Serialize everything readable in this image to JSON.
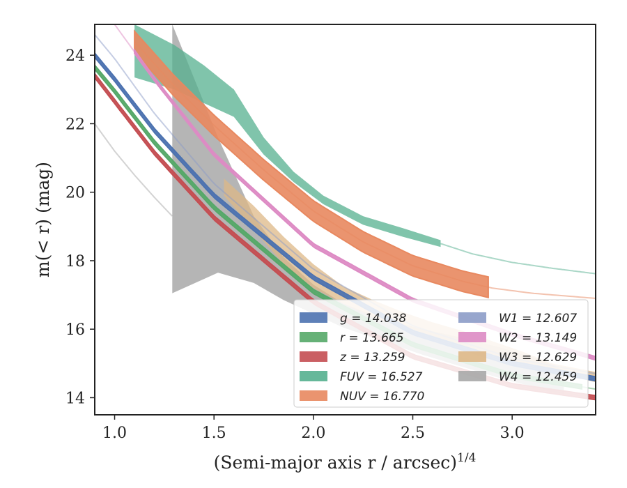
{
  "chart_data": {
    "type": "line",
    "xlabel": "(Semi-major axis r / arcsec)",
    "xlabel_exponent": "1/4",
    "ylabel": "m(< r) (mag)",
    "xlim": [
      0.9,
      3.42
    ],
    "ylim": [
      24.9,
      13.5
    ],
    "y_inverted": true,
    "xticks": [
      1.0,
      1.5,
      2.0,
      2.5,
      3.0
    ],
    "xtick_labels": [
      "1.0",
      "1.5",
      "2.0",
      "2.5",
      "3.0"
    ],
    "yticks": [
      14,
      16,
      18,
      20,
      22,
      24
    ],
    "ytick_labels": [
      "14",
      "16",
      "18",
      "20",
      "22",
      "24"
    ],
    "legend_position": "lower-right",
    "legend_columns": 2,
    "series": [
      {
        "name": "g",
        "legend": "g = 14.038",
        "color": "#4c72b0",
        "band": 0.06,
        "solid_range": [
          0.9,
          3.42
        ],
        "x": [
          0.9,
          1.0,
          1.2,
          1.5,
          2.0,
          2.5,
          3.0,
          3.42
        ],
        "y": [
          24.0,
          23.3,
          21.8,
          19.9,
          17.5,
          15.9,
          15.0,
          14.55
        ]
      },
      {
        "name": "r",
        "legend": "r = 13.665",
        "color": "#55a868",
        "band": 0.06,
        "solid_range": [
          0.9,
          3.35
        ],
        "x": [
          0.9,
          1.0,
          1.2,
          1.5,
          2.0,
          2.5,
          3.0,
          3.42
        ],
        "y": [
          23.65,
          22.95,
          21.45,
          19.55,
          17.1,
          15.55,
          14.65,
          14.25
        ]
      },
      {
        "name": "z",
        "legend": "z = 13.259",
        "color": "#c44e52",
        "band": 0.06,
        "solid_range": [
          0.9,
          3.42
        ],
        "x": [
          0.9,
          1.0,
          1.2,
          1.5,
          2.0,
          2.5,
          3.0,
          3.42
        ],
        "y": [
          23.4,
          22.65,
          21.15,
          19.25,
          16.8,
          15.2,
          14.35,
          14.0
        ]
      },
      {
        "name": "FUV",
        "legend": "FUV = 16.527",
        "color": "#55b08f",
        "band_lo": [
          24.9,
          24.3,
          23.7,
          23.0,
          21.6,
          20.6,
          19.9,
          19.3,
          18.95,
          18.6
        ],
        "band_hi": [
          23.35,
          23.0,
          22.6,
          22.2,
          21.1,
          20.3,
          19.65,
          19.05,
          18.7,
          18.4
        ],
        "band_x": [
          1.1,
          1.3,
          1.45,
          1.6,
          1.75,
          1.9,
          2.05,
          2.25,
          2.45,
          2.64
        ],
        "solid_range": [
          1.1,
          2.64
        ],
        "x": [
          2.64,
          2.8,
          3.0,
          3.2,
          3.42
        ],
        "y": [
          18.5,
          18.2,
          17.95,
          17.78,
          17.62
        ]
      },
      {
        "name": "NUV",
        "legend": "NUV = 16.770",
        "color": "#e8885f",
        "band": 0.3,
        "solid_range": [
          1.1,
          2.88
        ],
        "x": [
          1.1,
          1.3,
          1.5,
          1.75,
          2.0,
          2.25,
          2.5,
          2.75,
          2.9,
          3.1,
          3.42
        ],
        "y": [
          24.4,
          23.1,
          21.95,
          20.65,
          19.45,
          18.55,
          17.85,
          17.4,
          17.2,
          17.05,
          16.9
        ]
      },
      {
        "name": "W1",
        "legend": "W1 = 12.607",
        "color": "#8c9cc8",
        "band": 0.04,
        "solid_range": [
          3.42,
          3.42
        ],
        "x": [
          0.9,
          1.0,
          1.2,
          1.5,
          2.0,
          2.5,
          3.0,
          3.42
        ],
        "y": [
          24.6,
          23.9,
          22.3,
          20.25,
          17.75,
          16.1,
          15.15,
          14.7
        ]
      },
      {
        "name": "W2",
        "legend": "W2 = 13.149",
        "color": "#dd8bc4",
        "band": 0.05,
        "solid_range": [
          1.1,
          3.42
        ],
        "x": [
          0.9,
          1.0,
          1.2,
          1.5,
          2.0,
          2.5,
          3.0,
          3.42
        ],
        "y": [
          25.6,
          24.9,
          23.3,
          21.1,
          18.45,
          16.85,
          15.85,
          15.15
        ]
      },
      {
        "name": "W3",
        "legend": "W3 = 12.629",
        "color": "#deb887",
        "solid_range": [
          1.55,
          3.42
        ],
        "band_x": [
          1.55,
          1.7,
          1.85,
          2.0,
          2.15,
          2.3,
          2.45,
          2.6,
          2.75,
          2.9,
          3.05,
          3.2,
          3.42
        ],
        "band_lo": [
          20.4,
          19.6,
          18.7,
          17.9,
          17.25,
          16.85,
          16.5,
          16.2,
          15.95,
          15.65,
          15.35,
          15.0,
          14.75
        ],
        "band_hi": [
          19.9,
          18.9,
          17.9,
          17.2,
          16.75,
          16.35,
          16.05,
          15.8,
          15.45,
          15.2,
          15.0,
          14.75,
          14.45
        ],
        "x": [],
        "y": []
      },
      {
        "name": "W4",
        "legend": "W4 = 12.459",
        "color": "#a8a8a8",
        "band_x": [
          1.29,
          1.29,
          1.52,
          1.7,
          1.85,
          2.0,
          2.15,
          2.35,
          2.55,
          2.75,
          2.95,
          3.15,
          3.26,
          3.26
        ],
        "band_hi": [
          24.9,
          17.05,
          17.65,
          17.35,
          16.85,
          16.45,
          16.05,
          15.65,
          15.25,
          14.9,
          14.55,
          14.25,
          14.05,
          14.05
        ],
        "band_lo": [
          24.9,
          24.9,
          21.6,
          19.3,
          18.1,
          17.3,
          16.75,
          16.3,
          16.0,
          15.75,
          15.45,
          15.1,
          14.8,
          14.8
        ],
        "solid_range": [
          1.29,
          3.26
        ],
        "x": [
          0.9,
          1.0,
          1.1,
          1.2,
          1.29
        ],
        "y": [
          22.0,
          21.2,
          20.5,
          19.85,
          19.3
        ]
      }
    ]
  }
}
